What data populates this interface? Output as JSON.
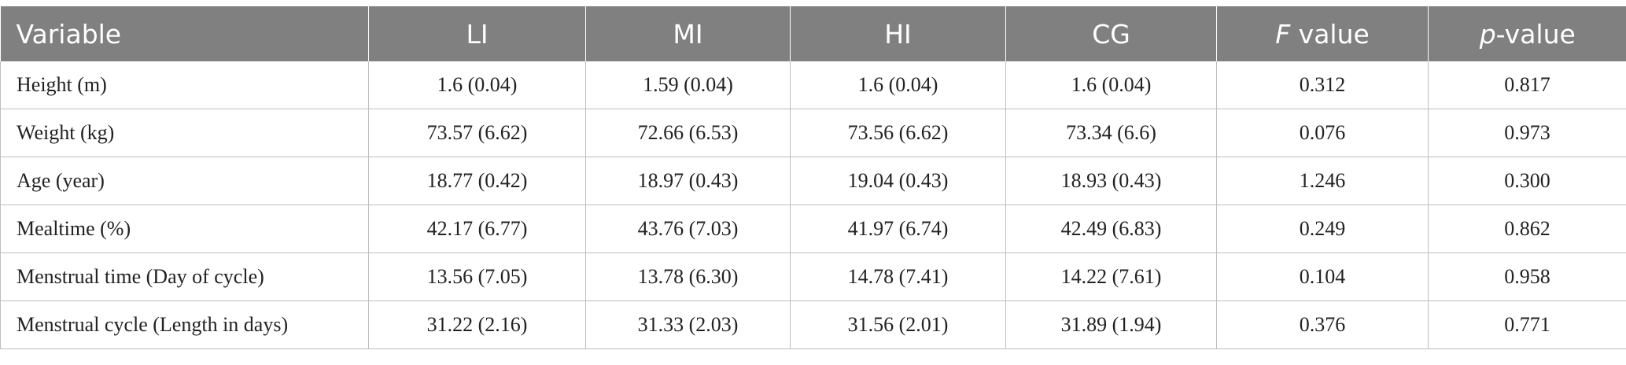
{
  "table": {
    "headers": [
      {
        "pre": "",
        "ital": "",
        "post": "Variable"
      },
      {
        "pre": "",
        "ital": "",
        "post": "LI"
      },
      {
        "pre": "",
        "ital": "",
        "post": "MI"
      },
      {
        "pre": "",
        "ital": "",
        "post": "HI"
      },
      {
        "pre": "",
        "ital": "",
        "post": "CG"
      },
      {
        "pre": "",
        "ital": "F",
        "post": " value"
      },
      {
        "pre": "",
        "ital": "p",
        "post": "-value"
      }
    ],
    "rows": [
      [
        "Height (m)",
        "1.6 (0.04)",
        "1.59 (0.04)",
        "1.6 (0.04)",
        "1.6 (0.04)",
        "0.312",
        "0.817"
      ],
      [
        "Weight (kg)",
        "73.57 (6.62)",
        "72.66 (6.53)",
        "73.56 (6.62)",
        "73.34 (6.6)",
        "0.076",
        "0.973"
      ],
      [
        "Age (year)",
        "18.77 (0.42)",
        "18.97 (0.43)",
        "19.04 (0.43)",
        "18.93 (0.43)",
        "1.246",
        "0.300"
      ],
      [
        "Mealtime (%)",
        "42.17 (6.77)",
        "43.76 (7.03)",
        "41.97 (6.74)",
        "42.49 (6.83)",
        "0.249",
        "0.862"
      ],
      [
        "Menstrual time (Day of cycle)",
        "13.56 (7.05)",
        "13.78 (6.30)",
        "14.78 (7.41)",
        "14.22 (7.61)",
        "0.104",
        "0.958"
      ],
      [
        "Menstrual cycle (Length in days)",
        "31.22 (2.16)",
        "31.33 (2.03)",
        "31.56 (2.01)",
        "31.89 (1.94)",
        "0.376",
        "0.771"
      ]
    ]
  }
}
